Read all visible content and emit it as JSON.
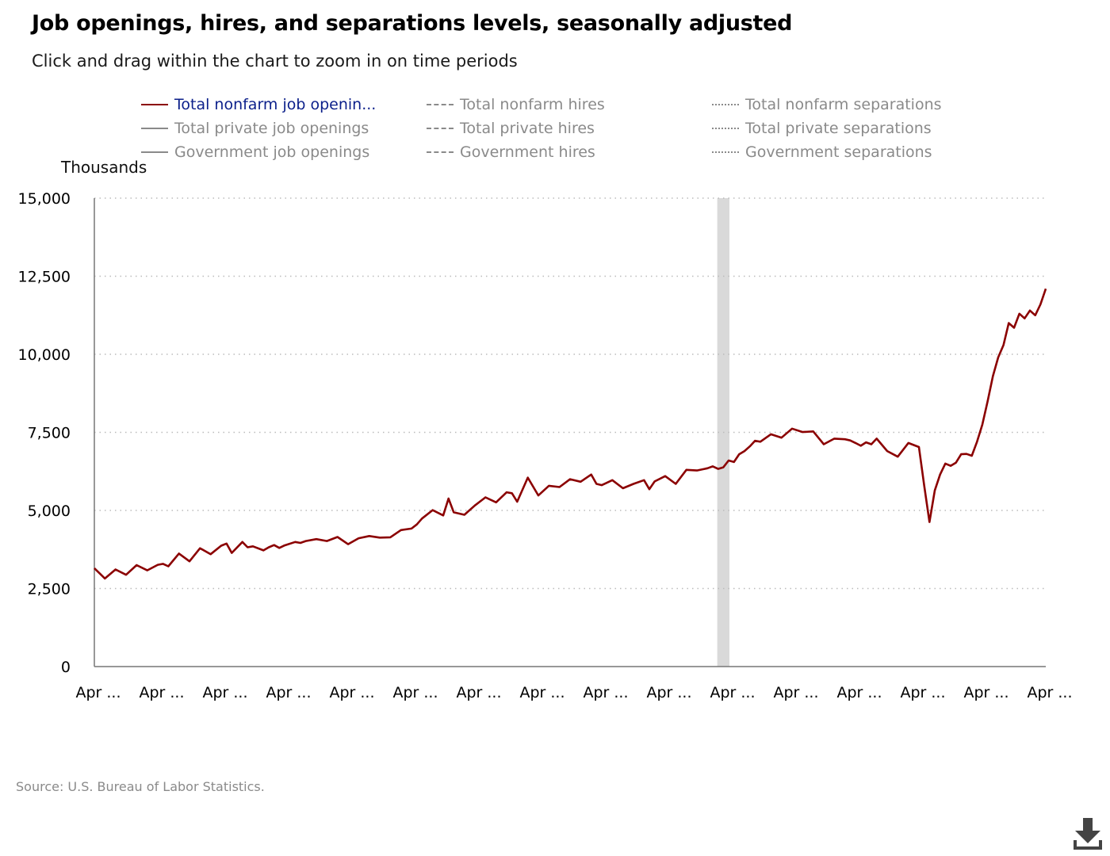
{
  "title": "Job openings, hires, and separations levels, seasonally adjusted",
  "subtitle": "Click and drag within the chart to zoom in on time periods",
  "legend": [
    {
      "label": "Total nonfarm job openin...",
      "style": "solid",
      "active": true
    },
    {
      "label": "Total nonfarm hires",
      "style": "dashed",
      "active": false
    },
    {
      "label": "Total nonfarm separations",
      "style": "dotted",
      "active": false
    },
    {
      "label": "Total private job openings",
      "style": "solid",
      "active": false
    },
    {
      "label": "Total private hires",
      "style": "dashed",
      "active": false
    },
    {
      "label": "Total private separations",
      "style": "dotted",
      "active": false
    },
    {
      "label": "Government job openings",
      "style": "solid",
      "active": false
    },
    {
      "label": "Government hires",
      "style": "dashed",
      "active": false
    },
    {
      "label": "Government separations",
      "style": "dotted",
      "active": false
    }
  ],
  "source": "Source: U.S. Bureau of Labor Statistics.",
  "colors": {
    "active_series": "#8b0000",
    "inactive": "#8a8a8a",
    "recession_band": "#d9d9d9",
    "grid": "#bbbbbb",
    "axis": "#777777"
  },
  "icons": {
    "download": "download-icon"
  },
  "chart_data": {
    "type": "line",
    "ylabel": "Thousands",
    "ylim": [
      0,
      15000
    ],
    "yticks": [
      "0",
      "2,500",
      "5,000",
      "7,500",
      "10,000",
      "12,500",
      "15,000"
    ],
    "ytick_values": [
      0,
      2500,
      5000,
      7500,
      10000,
      12500,
      15000
    ],
    "xticks": [
      "Apr ...",
      "Apr ...",
      "Apr ...",
      "Apr ...",
      "Apr ...",
      "Apr ...",
      "Apr ...",
      "Apr ...",
      "Apr ...",
      "Apr ...",
      "Apr ...",
      "Apr ...",
      "Apr ...",
      "Apr ...",
      "Apr ...",
      "Apr ..."
    ],
    "x_range": [
      0,
      180
    ],
    "grid": "horizontal dotted",
    "recession_band": [
      118,
      120
    ],
    "series": [
      {
        "name": "Total nonfarm job openin...",
        "x": [
          0,
          2,
          4,
          6,
          8,
          10,
          12,
          13,
          14,
          16,
          18,
          20,
          22,
          24,
          25,
          26,
          28,
          29,
          30,
          32,
          33,
          34,
          35,
          36,
          38,
          39,
          40,
          42,
          44,
          46,
          48,
          50,
          52,
          54,
          56,
          58,
          60,
          61,
          62,
          64,
          66,
          67,
          68,
          70,
          72,
          74,
          76,
          78,
          79,
          80,
          82,
          84,
          86,
          88,
          90,
          92,
          94,
          95,
          96,
          98,
          100,
          102,
          104,
          105,
          106,
          108,
          110,
          112,
          114,
          116,
          117,
          118,
          119,
          120,
          121,
          122,
          123,
          124,
          125,
          126,
          128,
          130,
          132,
          134,
          136,
          138,
          140,
          142,
          143,
          144,
          145,
          146,
          147,
          148,
          150,
          152,
          154,
          156,
          157,
          158,
          159,
          160,
          161,
          162,
          163,
          164,
          165,
          166,
          167,
          168,
          169,
          170,
          171,
          172,
          173,
          174,
          175,
          176,
          177,
          178,
          179,
          180
        ],
        "y": [
          3150,
          2820,
          3110,
          2940,
          3250,
          3080,
          3260,
          3290,
          3210,
          3620,
          3370,
          3790,
          3600,
          3870,
          3940,
          3640,
          3990,
          3820,
          3850,
          3720,
          3820,
          3890,
          3800,
          3880,
          3990,
          3960,
          4020,
          4080,
          4020,
          4150,
          3920,
          4110,
          4180,
          4130,
          4140,
          4370,
          4420,
          4550,
          4740,
          5010,
          4840,
          5380,
          4940,
          4860,
          5160,
          5420,
          5260,
          5580,
          5550,
          5280,
          6050,
          5480,
          5790,
          5750,
          6000,
          5920,
          6150,
          5850,
          5810,
          5970,
          5710,
          5850,
          5970,
          5680,
          5930,
          6100,
          5850,
          6300,
          6280,
          6350,
          6410,
          6330,
          6380,
          6600,
          6550,
          6800,
          6900,
          7050,
          7230,
          7200,
          7440,
          7330,
          7620,
          7510,
          7530,
          7120,
          7300,
          7280,
          7240,
          7160,
          7070,
          7180,
          7120,
          7300,
          6900,
          6720,
          7160,
          7030,
          5790,
          4630,
          5640,
          6150,
          6500,
          6430,
          6530,
          6800,
          6810,
          6750,
          7200,
          7750,
          8500,
          9300,
          9900,
          10300,
          11000,
          10850,
          11300,
          11150,
          11400,
          11250,
          11600,
          12100
        ]
      }
    ]
  }
}
